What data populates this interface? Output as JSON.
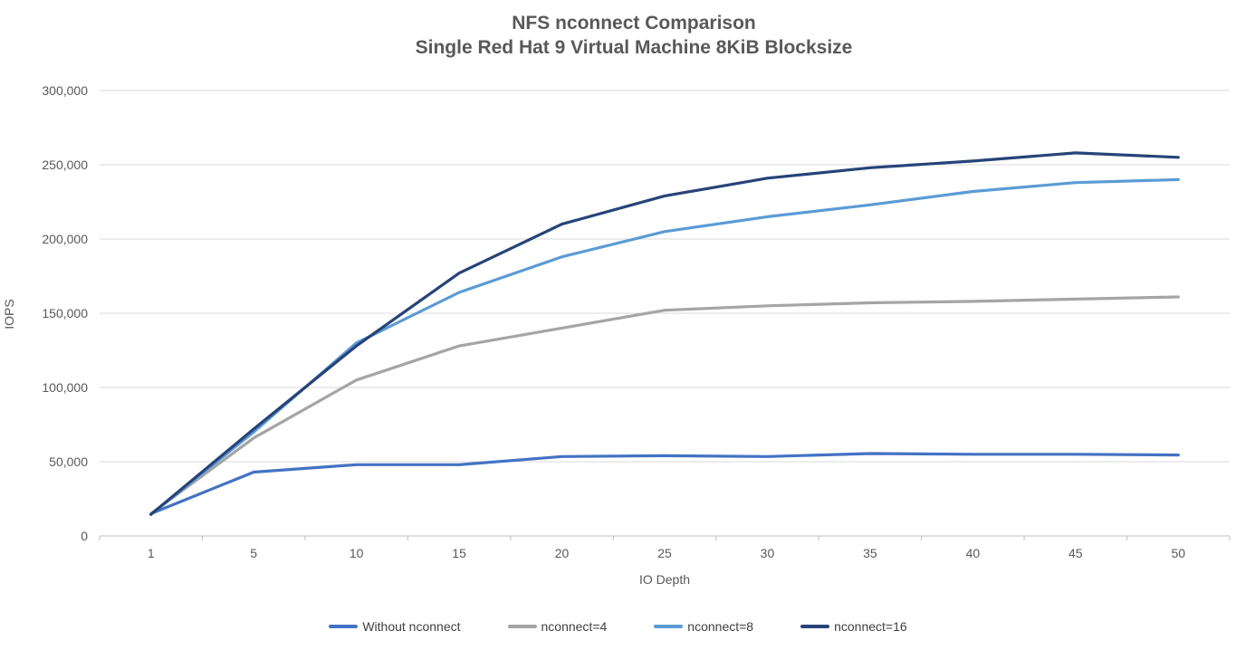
{
  "chart": {
    "title_line1": "NFS nconnect Comparison",
    "title_line2": "Single Red Hat 9 Virtual Machine 8KiB Blocksize",
    "x_axis_label": "IO Depth",
    "y_axis_label": "IOPS"
  },
  "chart_data": {
    "type": "line",
    "title": "NFS nconnect Comparison",
    "subtitle": "Single Red Hat 9 Virtual Machine 8KiB Blocksize",
    "xlabel": "IO Depth",
    "ylabel": "IOPS",
    "categories": [
      1,
      5,
      10,
      15,
      20,
      25,
      30,
      35,
      40,
      45,
      50
    ],
    "ylim": [
      0,
      300000
    ],
    "ytick_interval": 50000,
    "ytick_labels": [
      "0",
      "50,000",
      "100,000",
      "150,000",
      "200,000",
      "250,000",
      "300,000"
    ],
    "grid": true,
    "legend_position": "bottom",
    "colors": {
      "gridline": "#D9D9D9",
      "axis_line": "#BFBFBF",
      "tick_label": "#595959",
      "title": "#595959",
      "legend_text": "#404040"
    },
    "series": [
      {
        "name": "Without nconnect",
        "color": "#4472C4",
        "values": [
          15000,
          43000,
          48000,
          48000,
          53500,
          54000,
          53500,
          55500,
          55000,
          55000,
          54500
        ]
      },
      {
        "name": "nconnect=4",
        "color": "#A5A5A5",
        "values": [
          15000,
          66000,
          105000,
          128000,
          140000,
          152000,
          155000,
          157000,
          158000,
          159500,
          161000
        ]
      },
      {
        "name": "nconnect=8",
        "color": "#5B9BD5",
        "values": [
          14500,
          70000,
          130000,
          164000,
          188000,
          205000,
          215000,
          223000,
          232000,
          238000,
          240000
        ]
      },
      {
        "name": "nconnect=16",
        "color": "#264478",
        "values": [
          14500,
          72000,
          128000,
          177000,
          210000,
          229000,
          241000,
          248000,
          252500,
          258000,
          255000
        ]
      }
    ]
  }
}
